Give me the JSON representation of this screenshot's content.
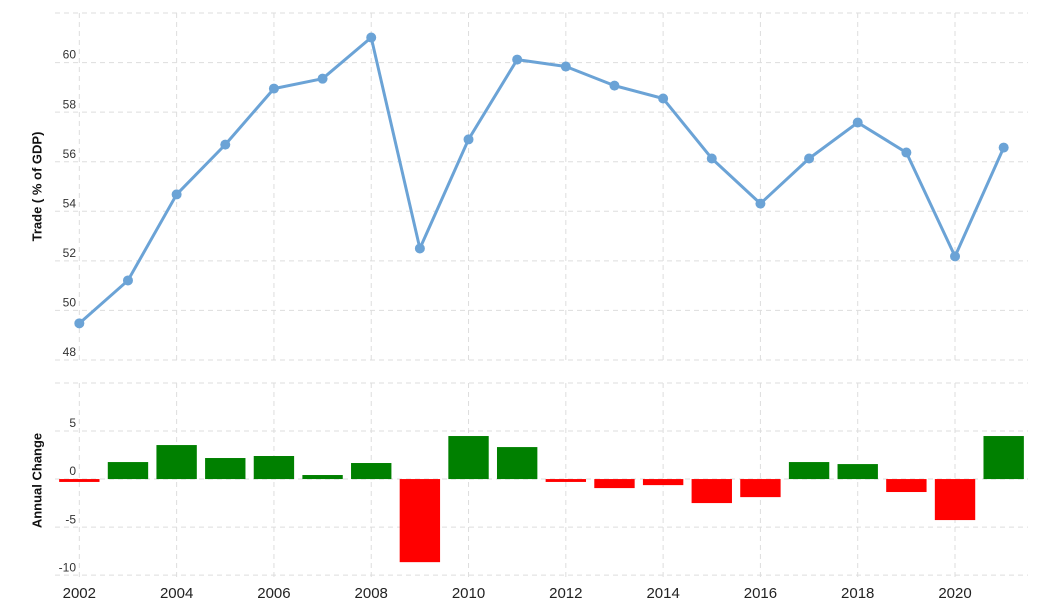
{
  "chart_data": [
    {
      "type": "line",
      "y_label": "Trade ( % of GDP)",
      "x": [
        2002,
        2003,
        2004,
        2005,
        2006,
        2007,
        2008,
        2009,
        2010,
        2011,
        2012,
        2013,
        2014,
        2015,
        2016,
        2017,
        2018,
        2019,
        2020,
        2021
      ],
      "series": [
        {
          "color": "#6ba3d6",
          "values": [
            49.48,
            51.21,
            54.68,
            56.69,
            58.95,
            59.35,
            61.01,
            52.5,
            56.9,
            60.12,
            59.84,
            59.07,
            58.55,
            56.13,
            54.31,
            56.13,
            57.58,
            56.37,
            52.18,
            56.57
          ]
        }
      ],
      "xlim": [
        2001.5,
        2021.5
      ],
      "xticks": [
        2002,
        2004,
        2006,
        2008,
        2010,
        2012,
        2014,
        2016,
        2018,
        2020
      ],
      "ylim": [
        48,
        62
      ],
      "yticks": [
        48,
        50,
        52,
        54,
        56,
        58,
        60
      ],
      "grid": true
    },
    {
      "type": "bar",
      "y_label": "Annual Change",
      "x": [
        2002,
        2003,
        2004,
        2005,
        2006,
        2007,
        2008,
        2009,
        2010,
        2011,
        2012,
        2013,
        2014,
        2015,
        2016,
        2017,
        2018,
        2019,
        2020,
        2021
      ],
      "values": [
        -0.3,
        1.77,
        3.54,
        2.19,
        2.4,
        0.42,
        1.67,
        -8.65,
        4.48,
        3.33,
        -0.3,
        -0.94,
        -0.63,
        -2.5,
        -1.88,
        1.77,
        1.56,
        -1.35,
        -4.27,
        4.48
      ],
      "positive_color": "#008000",
      "negative_color": "#ff0000",
      "xlim": [
        2001.5,
        2021.5
      ],
      "xticks": [
        2002,
        2004,
        2006,
        2008,
        2010,
        2012,
        2014,
        2016,
        2018,
        2020
      ],
      "ylim": [
        -10.3,
        10
      ],
      "yticks": [
        -10,
        -5,
        0,
        5
      ],
      "grid": true
    }
  ]
}
